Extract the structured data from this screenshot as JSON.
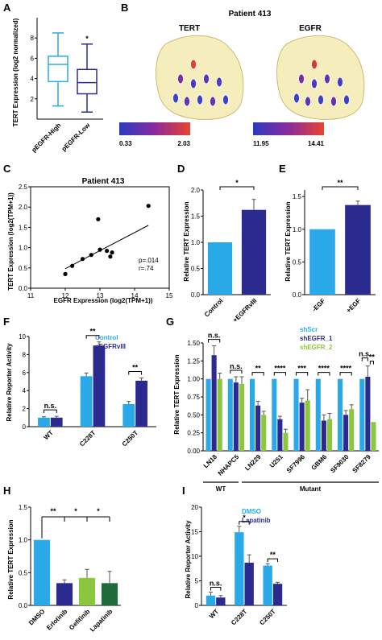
{
  "colors": {
    "cyan": "#2aa9e8",
    "navy": "#2b2a8f",
    "green": "#8cc63e",
    "darkgreen": "#1f6b3a",
    "brain": "#f3ebb0",
    "brain_edge": "#c9bc72"
  },
  "panels": {
    "A": {
      "label": "A",
      "ylabel": "TERT Expression (log2 normalized)",
      "sig": "*",
      "yticks": [
        "2",
        "4",
        "6",
        "8"
      ]
    },
    "B": {
      "label": "B",
      "title": "Patient 413",
      "left_title": "TERT",
      "right_title": "EGFR",
      "left_min": "0.33",
      "left_max": "2.03",
      "right_min": "11.95",
      "right_max": "14.41"
    },
    "C": {
      "label": "C",
      "title": "Patient 413",
      "xlabel": "EGFR Expression (log2(TPM+1))",
      "ylabel": "TERT Expression (log2(TPM+1))",
      "stat_p": "p=.014",
      "stat_r": "r=.74",
      "xticks": [
        "11",
        "12",
        "13",
        "14",
        "15"
      ],
      "yticks": [
        "0.0",
        "0.5",
        "1.0",
        "1.5",
        "2.0",
        "2.5"
      ]
    },
    "D": {
      "label": "D",
      "ylabel": "Relative TERT Expression",
      "sig": "*",
      "yticks": [
        "0.0",
        "0.5",
        "1.0",
        "1.5",
        "2.0"
      ]
    },
    "E": {
      "label": "E",
      "ylabel": "Relative TERT Expression",
      "sig": "**",
      "yticks": [
        "0.0",
        "0.5",
        "1.0",
        "1.5"
      ]
    },
    "F": {
      "label": "F",
      "ylabel": "Relative Reporter Activity",
      "yticks": [
        "0",
        "2",
        "4",
        "6",
        "8",
        "10"
      ],
      "sigs": [
        "n.s.",
        "**",
        "**"
      ]
    },
    "G": {
      "label": "G",
      "ylabel": "Relative TERT Expression",
      "yticks": [
        "0.00",
        "0.25",
        "0.50",
        "0.75",
        "1.00",
        "1.25",
        "1.50"
      ],
      "sigs": [
        "n.s.",
        "n.s.",
        "**",
        "****",
        "***",
        "****",
        "****",
        "n.s.",
        "**"
      ],
      "group_wt": "WT",
      "group_mutant": "Mutant"
    },
    "H": {
      "label": "H",
      "ylabel": "Relative TERT Expression",
      "yticks": [
        "0.0",
        "0.5",
        "1.0",
        "1.5"
      ],
      "sigs": [
        "**",
        "*",
        "*"
      ]
    },
    "I": {
      "label": "I",
      "ylabel": "Relative Reporter Activity",
      "yticks": [
        "0",
        "5",
        "10",
        "15",
        "20"
      ],
      "sigs": [
        "n.s.",
        "*",
        "**"
      ]
    }
  },
  "chart_data": [
    {
      "id": "A",
      "type": "box",
      "categories": [
        "pEGFR-High",
        "pEGFR-Low"
      ],
      "ylim": [
        0,
        10
      ],
      "boxes": [
        {
          "min": 1.3,
          "q1": 3.7,
          "median": 5.4,
          "q3": 6.2,
          "max": 8.5
        },
        {
          "min": 0.7,
          "q1": 2.5,
          "median": 3.6,
          "q3": 4.9,
          "max": 7.4
        }
      ]
    },
    {
      "id": "C",
      "type": "scatter",
      "xlim": [
        11,
        15
      ],
      "ylim": [
        0,
        2.5
      ],
      "x": [
        12.0,
        12.2,
        12.5,
        12.75,
        12.95,
        13.0,
        13.2,
        13.3,
        13.35,
        14.4
      ],
      "y": [
        0.35,
        0.55,
        0.72,
        0.82,
        1.7,
        0.95,
        0.92,
        0.78,
        0.88,
        2.03
      ],
      "fit": [
        [
          12.0,
          0.48
        ],
        [
          14.4,
          1.55
        ]
      ]
    },
    {
      "id": "D",
      "type": "bar",
      "categories": [
        "Control",
        "+EGFRvIII"
      ],
      "values": [
        1.0,
        1.62
      ],
      "errors": [
        0,
        0.2
      ],
      "ylim": [
        0,
        2
      ]
    },
    {
      "id": "E",
      "type": "bar",
      "categories": [
        "-EGF",
        "+EGF"
      ],
      "values": [
        1.0,
        1.37
      ],
      "errors": [
        0,
        0.06
      ],
      "ylim": [
        0,
        1.6
      ]
    },
    {
      "id": "F",
      "type": "bar",
      "categories": [
        "WT",
        "C228T",
        "C250T"
      ],
      "legend": [
        "Control",
        "+EGFRvIII"
      ],
      "series": [
        {
          "name": "Control",
          "values": [
            1.0,
            5.6,
            2.5
          ],
          "errors": [
            0.1,
            0.35,
            0.3
          ]
        },
        {
          "name": "+EGFRvIII",
          "values": [
            1.0,
            9.0,
            5.1
          ],
          "errors": [
            0.15,
            0.4,
            0.3
          ]
        }
      ],
      "ylim": [
        0,
        10
      ]
    },
    {
      "id": "G",
      "type": "bar",
      "categories": [
        "LN18",
        "NHAPC5",
        "LN229",
        "U251",
        "SF7996",
        "GBM6",
        "SF9030",
        "SF8279"
      ],
      "legend": [
        "shScr",
        "shEGFR_1",
        "shEGFR_2"
      ],
      "series": [
        {
          "name": "shScr",
          "values": [
            1.0,
            1.0,
            1.0,
            1.0,
            1.0,
            1.0,
            1.0,
            1.0
          ],
          "errors": [
            0,
            0,
            0,
            0,
            0,
            0,
            0,
            0
          ]
        },
        {
          "name": "shEGFR_1",
          "values": [
            1.33,
            0.95,
            0.63,
            0.44,
            0.67,
            0.42,
            0.5,
            1.03
          ],
          "errors": [
            0.13,
            0.08,
            0.06,
            0.04,
            0.06,
            0.08,
            0.06,
            0.15
          ]
        },
        {
          "name": "shEGFR_2",
          "values": [
            1.0,
            0.93,
            0.5,
            0.25,
            0.7,
            0.44,
            0.58,
            0.4
          ],
          "errors": [
            0.08,
            0.1,
            0.05,
            0.05,
            0.15,
            0.08,
            0.06,
            0
          ]
        }
      ],
      "ylim": [
        0,
        1.5
      ]
    },
    {
      "id": "H",
      "type": "bar",
      "categories": [
        "DMSO",
        "Erlotinib",
        "Gefitinib",
        "Lapatinib"
      ],
      "values": [
        1.0,
        0.34,
        0.42,
        0.34
      ],
      "errors": [
        0,
        0.05,
        0.13,
        0.18
      ],
      "ylim": [
        0,
        1.5
      ]
    },
    {
      "id": "I",
      "type": "bar",
      "categories": [
        "WT",
        "C228T",
        "C250T"
      ],
      "legend": [
        "DMSO",
        "Lapatinib"
      ],
      "series": [
        {
          "name": "DMSO",
          "values": [
            2.0,
            14.9,
            8.1
          ],
          "errors": [
            0.7,
            1.2,
            0.4
          ]
        },
        {
          "name": "Lapatinib",
          "values": [
            1.6,
            8.7,
            4.4
          ],
          "errors": [
            0.4,
            1.6,
            0.3
          ]
        }
      ],
      "ylim": [
        0,
        20
      ]
    }
  ]
}
